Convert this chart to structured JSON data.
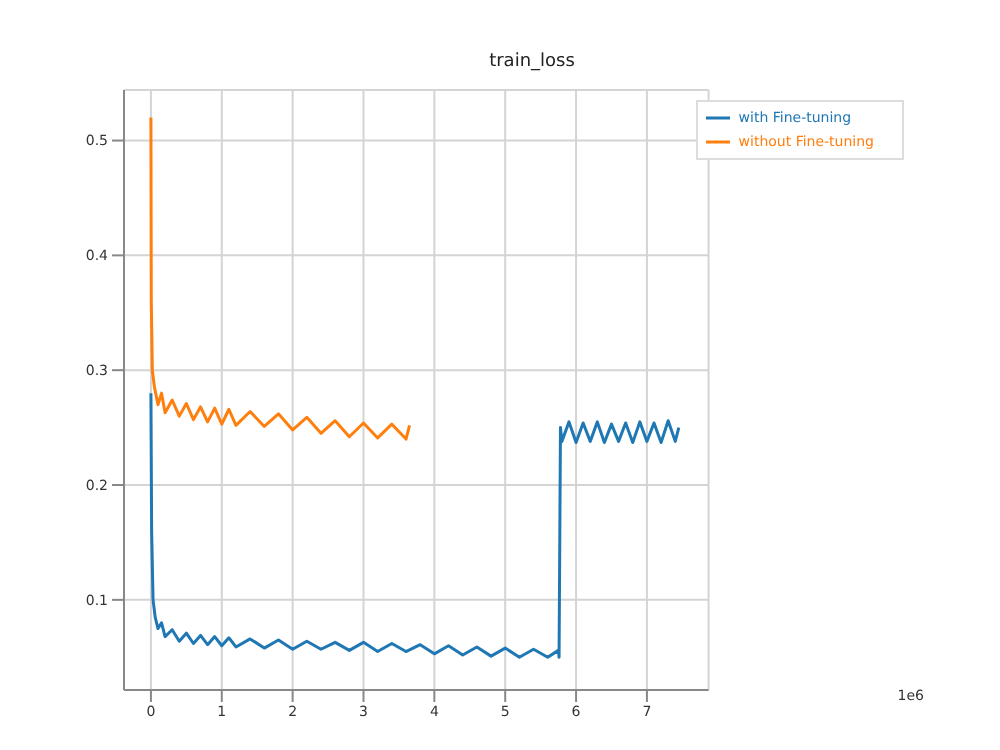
{
  "chart_data": {
    "type": "line",
    "title": "train_loss",
    "annotations": [
      "1e6"
    ],
    "xlim": [
      -0.38,
      7.87
    ],
    "xticks": [
      0,
      1,
      2,
      3,
      4,
      5,
      6,
      7
    ],
    "ylim": [
      0.0215,
      0.544
    ],
    "yticks": [
      0.1,
      0.2,
      0.3,
      0.4,
      0.5
    ],
    "grid": true,
    "legend": "top right",
    "marker": "none",
    "line_style": "solid",
    "series": [
      {
        "name": "with Fine-tuning",
        "color": "#1f77b4",
        "x": [
          0,
          0.01,
          0.03,
          0.06,
          0.1,
          0.15,
          0.2,
          0.3,
          0.4,
          0.5,
          0.6,
          0.7,
          0.8,
          0.9,
          1.0,
          1.1,
          1.2,
          1.4,
          1.6,
          1.8,
          2.0,
          2.2,
          2.4,
          2.6,
          2.8,
          3.0,
          3.2,
          3.4,
          3.6,
          3.8,
          4.0,
          4.2,
          4.4,
          4.6,
          4.8,
          5.0,
          5.2,
          5.4,
          5.6,
          5.75,
          5.76,
          5.78,
          5.8,
          5.9,
          6.0,
          6.1,
          6.2,
          6.3,
          6.4,
          6.5,
          6.6,
          6.7,
          6.8,
          6.9,
          7.0,
          7.1,
          7.2,
          7.3,
          7.4,
          7.45
        ],
        "values": [
          0.28,
          0.16,
          0.1,
          0.085,
          0.075,
          0.08,
          0.068,
          0.074,
          0.064,
          0.071,
          0.062,
          0.069,
          0.061,
          0.068,
          0.06,
          0.067,
          0.059,
          0.066,
          0.058,
          0.065,
          0.057,
          0.064,
          0.057,
          0.063,
          0.056,
          0.063,
          0.055,
          0.062,
          0.055,
          0.061,
          0.053,
          0.06,
          0.052,
          0.059,
          0.051,
          0.058,
          0.05,
          0.057,
          0.05,
          0.056,
          0.05,
          0.25,
          0.238,
          0.255,
          0.237,
          0.254,
          0.238,
          0.255,
          0.237,
          0.253,
          0.238,
          0.254,
          0.237,
          0.255,
          0.238,
          0.254,
          0.237,
          0.256,
          0.238,
          0.25
        ]
      },
      {
        "name": "without Fine-tuning",
        "color": "#ff7f0e",
        "x": [
          0,
          0.005,
          0.02,
          0.05,
          0.1,
          0.15,
          0.2,
          0.3,
          0.4,
          0.5,
          0.6,
          0.7,
          0.8,
          0.9,
          1.0,
          1.1,
          1.2,
          1.4,
          1.6,
          1.8,
          2.0,
          2.2,
          2.4,
          2.6,
          2.8,
          3.0,
          3.2,
          3.4,
          3.6,
          3.65
        ],
        "values": [
          0.52,
          0.36,
          0.3,
          0.285,
          0.27,
          0.28,
          0.263,
          0.274,
          0.26,
          0.271,
          0.257,
          0.268,
          0.255,
          0.267,
          0.253,
          0.266,
          0.252,
          0.264,
          0.251,
          0.262,
          0.248,
          0.259,
          0.245,
          0.256,
          0.242,
          0.254,
          0.241,
          0.253,
          0.24,
          0.252
        ]
      }
    ]
  }
}
